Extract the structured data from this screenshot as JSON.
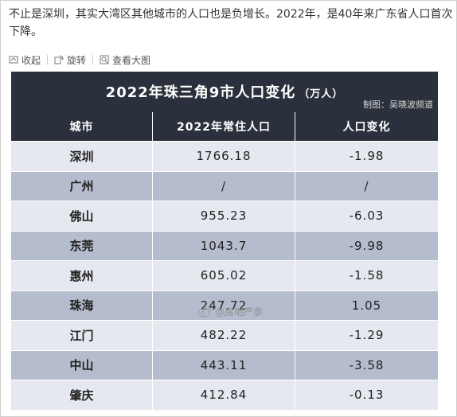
{
  "post": {
    "text": "不止是深圳，其实大湾区其他城市的人口也是负增长。2022年，是40年来广东省人口首次下降。"
  },
  "toolbar": {
    "collapse_label": "收起",
    "rotate_label": "旋转",
    "view_large_label": "查看大图",
    "collapse_icon": "collapse-icon",
    "rotate_icon": "rotate-icon",
    "zoom_icon": "zoom-icon"
  },
  "figure": {
    "title": "2022年珠三角9市人口变化",
    "unit": "（万人）",
    "credit": "制图：吴晓波频道",
    "headers": [
      "城市",
      "2022年常住人口",
      "人口变化"
    ],
    "rows": [
      [
        "深圳",
        "1766.18",
        "-1.98"
      ],
      [
        "广州",
        "/",
        "/"
      ],
      [
        "佛山",
        "955.23",
        "-6.03"
      ],
      [
        "东莞",
        "1043.7",
        "-9.98"
      ],
      [
        "惠州",
        "605.02",
        "-1.58"
      ],
      [
        "珠海",
        "247.72",
        "1.05"
      ],
      [
        "江门",
        "482.22",
        "-1.29"
      ],
      [
        "中山",
        "443.11",
        "-3.58"
      ],
      [
        "肇庆",
        "412.84",
        "-0.13"
      ]
    ],
    "watermark": "@房地产参",
    "colors": {
      "header_bg": "#2b313c",
      "row_light": "#e6e8f0",
      "row_dark": "#b5bccd"
    }
  }
}
